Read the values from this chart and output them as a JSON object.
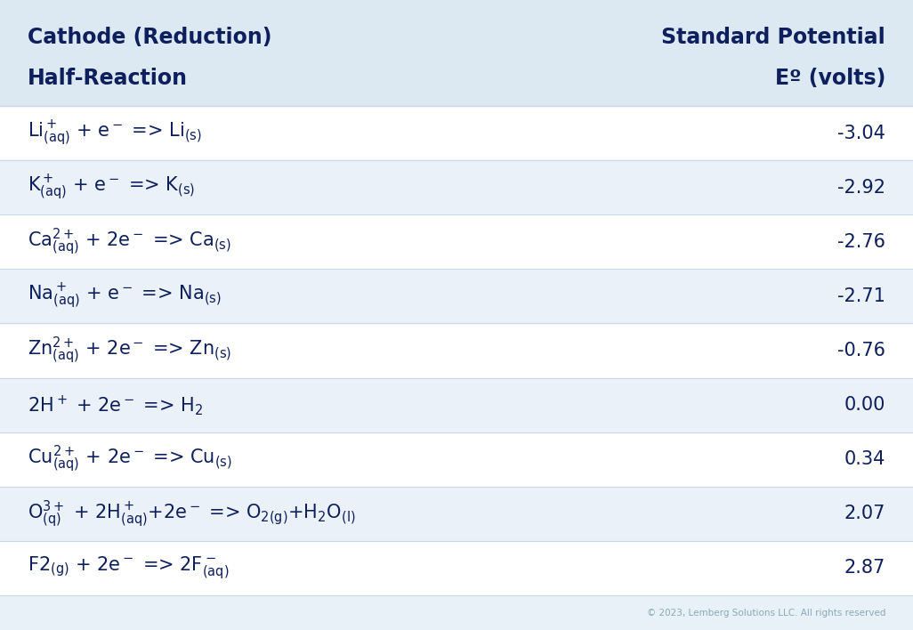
{
  "title_col1_line1": "Cathode (Reduction)",
  "title_col1_line2": "Half-Reaction",
  "title_col2_line1": "Standard Potential",
  "title_col2_line2": "Eº (volts)",
  "bg_color": "#e8f0f8",
  "header_bg": "#dce8f2",
  "row_bg_white": "#ffffff",
  "row_bg_light": "#eaf1f8",
  "text_color": "#0d1f5c",
  "header_text_color": "#0d1f5c",
  "divider_color": "#c8d8e8",
  "copyright_text": "© 2023, Lemberg Solutions LLC. All rights reserved",
  "rows": [
    {
      "reaction_parts": [
        {
          "text": "Li",
          "style": "normal"
        },
        {
          "text": "+",
          "style": "super"
        },
        {
          "text": "(aq)",
          "style": "sub_after_super"
        },
        {
          "text": " + e",
          "style": "normal"
        },
        {
          "text": "⁻",
          "style": "super_char"
        },
        {
          "text": " => Li",
          "style": "normal"
        },
        {
          "text": "(s)",
          "style": "sub"
        }
      ],
      "potential": "-3.04"
    },
    {
      "reaction_parts": [],
      "potential": "-2.92"
    },
    {
      "reaction_parts": [],
      "potential": "-2.76"
    },
    {
      "reaction_parts": [],
      "potential": "-2.71"
    },
    {
      "reaction_parts": [],
      "potential": "-0.76"
    },
    {
      "reaction_parts": [],
      "potential": "0.00"
    },
    {
      "reaction_parts": [],
      "potential": "0.34"
    },
    {
      "reaction_parts": [],
      "potential": "2.07"
    },
    {
      "reaction_parts": [],
      "potential": "2.87"
    }
  ],
  "reaction_texts": [
    "Li$\\mathregular{^+_{(aq)}}$ + e$\\mathregular{^-}$ => Li$\\mathregular{_{(s)}}$",
    "K$\\mathregular{^+_{(aq)}}$ + e$\\mathregular{^-}$ => K$\\mathregular{_{(s)}}$",
    "Ca$\\mathregular{^{2+}_{(aq)}}$ + 2e$\\mathregular{^-}$ => Ca$\\mathregular{_{(s)}}$",
    "Na$\\mathregular{^+_{(aq)}}$ + e$\\mathregular{^-}$ => Na$\\mathregular{_{(s)}}$",
    "Zn$\\mathregular{^{2+}_{(aq)}}$ + 2e$\\mathregular{^-}$ => Zn$\\mathregular{_{(s)}}$",
    "2H$\\mathregular{^+}$ + 2e$\\mathregular{^-}$ => H$\\mathregular{_2}$",
    "Cu$\\mathregular{^{2+}_{(aq)}}$ + 2e$\\mathregular{^-}$ => Cu$\\mathregular{_{(s)}}$",
    "O$\\mathregular{^{3+}_{(q)}}$ + 2H$\\mathregular{^+_{(aq)}}$+2e$\\mathregular{^-}$ => O$\\mathregular{_{2(g)}}$+H$\\mathregular{_2}$O$\\mathregular{_{(l)}}$",
    "F2$\\mathregular{_{(g)}}$ + 2e$\\mathregular{^-}$ => 2F$\\mathregular{^-_{(aq)}}$"
  ],
  "potentials": [
    "-3.04",
    "-2.92",
    "-2.76",
    "-2.71",
    "-0.76",
    "0.00",
    "0.34",
    "2.07",
    "2.87"
  ],
  "n_rows": 9,
  "fig_width": 10.26,
  "fig_height": 7.08,
  "dpi": 100
}
